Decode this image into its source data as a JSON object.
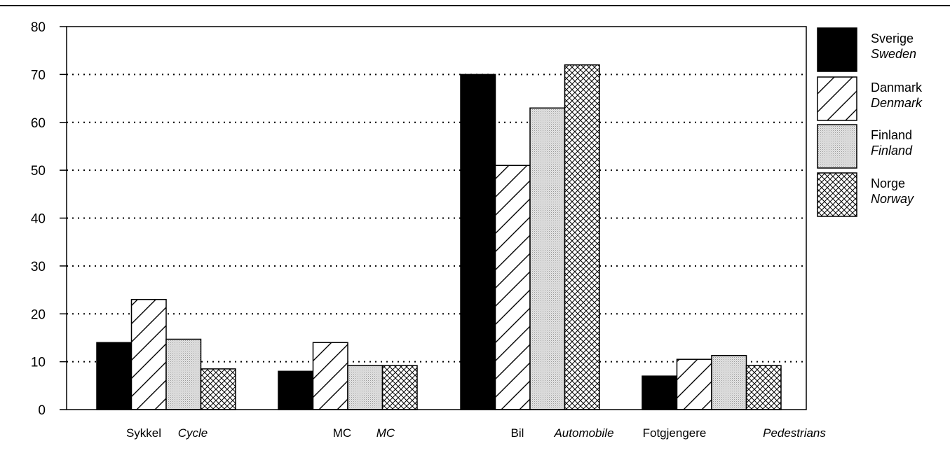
{
  "chart_data": {
    "type": "bar",
    "categories": [
      {
        "label": "Sykkel",
        "label_en": "Cycle"
      },
      {
        "label": "MC",
        "label_en": "MC"
      },
      {
        "label": "Bil",
        "label_en": "Automobile"
      },
      {
        "label": "Fotgjengere",
        "label_en": "Pedestrians"
      }
    ],
    "series": [
      {
        "name": "Sverige",
        "name_en": "Sweden",
        "pattern": "solid",
        "values": [
          14,
          8,
          70,
          7
        ]
      },
      {
        "name": "Danmark",
        "name_en": "Denmark",
        "pattern": "diagonal-hatch",
        "values": [
          23,
          14,
          51,
          10.5
        ]
      },
      {
        "name": "Finland",
        "name_en": "Finland",
        "pattern": "dotted-gray",
        "values": [
          14.7,
          9.2,
          63,
          11.3
        ]
      },
      {
        "name": "Norge",
        "name_en": "Norway",
        "pattern": "crosshatch",
        "values": [
          8.5,
          9.2,
          72,
          9.2
        ]
      }
    ],
    "yticks": [
      0,
      10,
      20,
      30,
      40,
      50,
      60,
      70,
      80
    ],
    "ylim": [
      0,
      80
    ],
    "grid": "dotted horizontal",
    "legend_position": "right",
    "colors": {
      "bar_stroke": "#000000",
      "gray_fill": "#d9d9d9"
    }
  }
}
